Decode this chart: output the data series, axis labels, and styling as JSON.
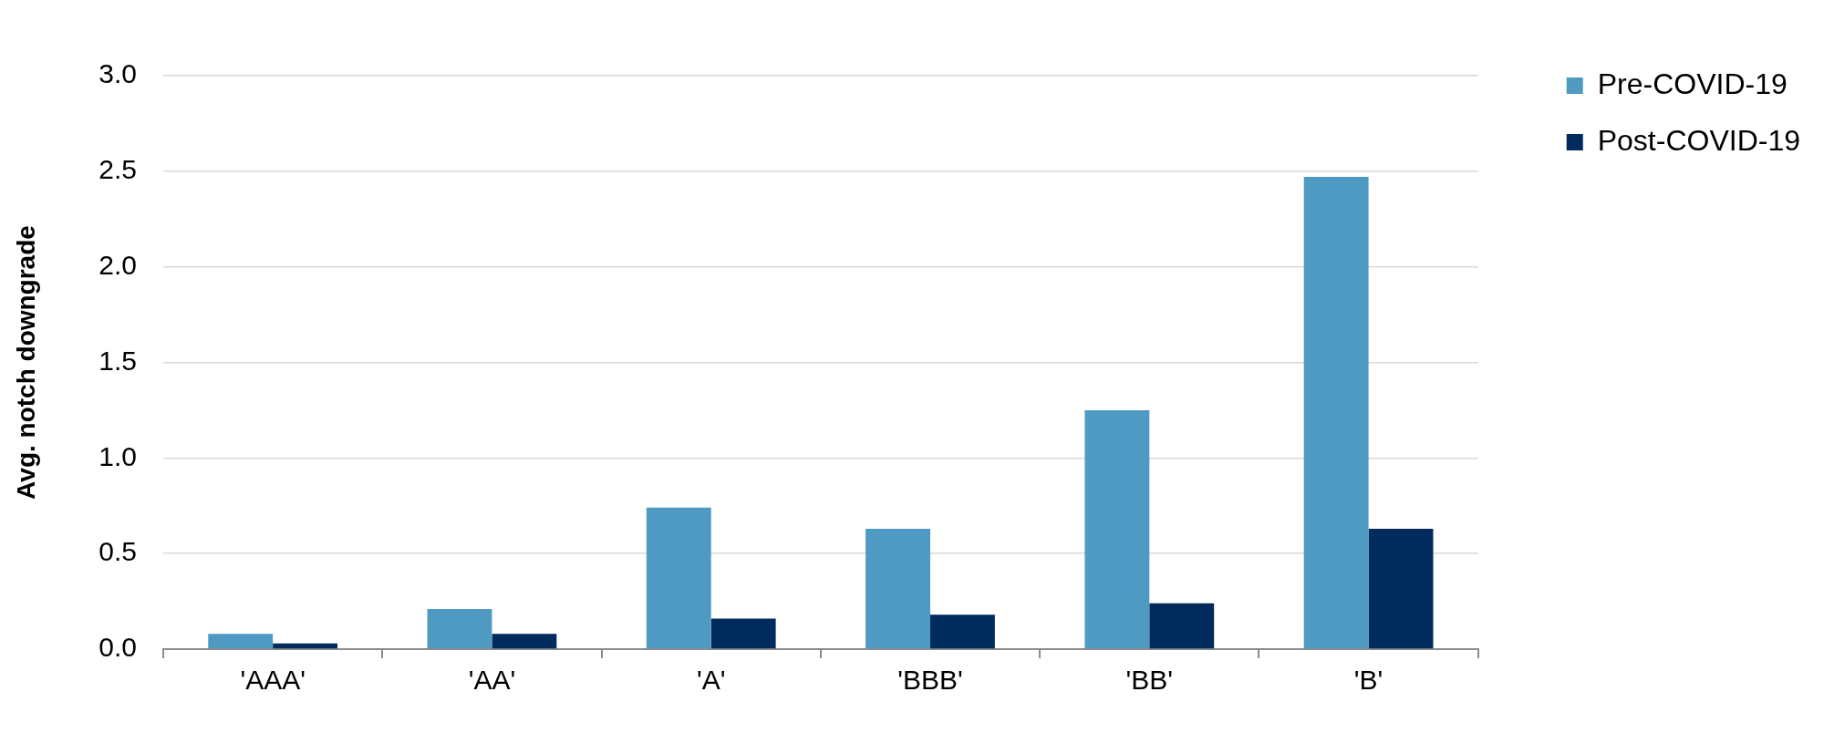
{
  "chart_data": {
    "type": "bar",
    "categories": [
      "'AAA'",
      "'AA'",
      "'A'",
      "'BBB'",
      "'BB'",
      "'B'"
    ],
    "ylabel": "Avg. notch downgrade",
    "series": [
      {
        "name": "Pre-COVID-19",
        "color": "#4f9ac2",
        "values": [
          0.08,
          0.21,
          0.74,
          0.63,
          1.25,
          2.47
        ]
      },
      {
        "name": "Post-COVID-19",
        "color": "#002b5c",
        "values": [
          0.03,
          0.08,
          0.16,
          0.18,
          0.24,
          0.63
        ]
      }
    ],
    "ylim": [
      0,
      3
    ],
    "yticks": [
      {
        "value": 0,
        "label": "0.0"
      },
      0.5,
      {
        "value": 1,
        "label": "1.0"
      },
      1.5,
      {
        "value": 2,
        "label": "2.0"
      },
      2.5,
      {
        "value": 3,
        "label": "3.0"
      }
    ],
    "grid": "y",
    "legend": "top right"
  }
}
